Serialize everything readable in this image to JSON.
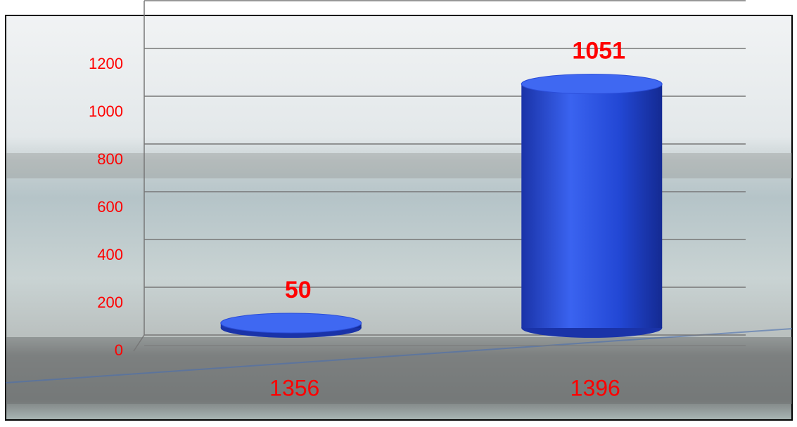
{
  "chart_data": {
    "type": "bar",
    "categories": [
      "1356",
      "1396"
    ],
    "values": [
      50,
      1051
    ],
    "color": "#2447d6",
    "ylim": [
      0,
      1400
    ],
    "yticks": [
      0,
      200,
      400,
      600,
      800,
      1000,
      1200
    ],
    "grid": true,
    "label_color": "#ff0000"
  }
}
